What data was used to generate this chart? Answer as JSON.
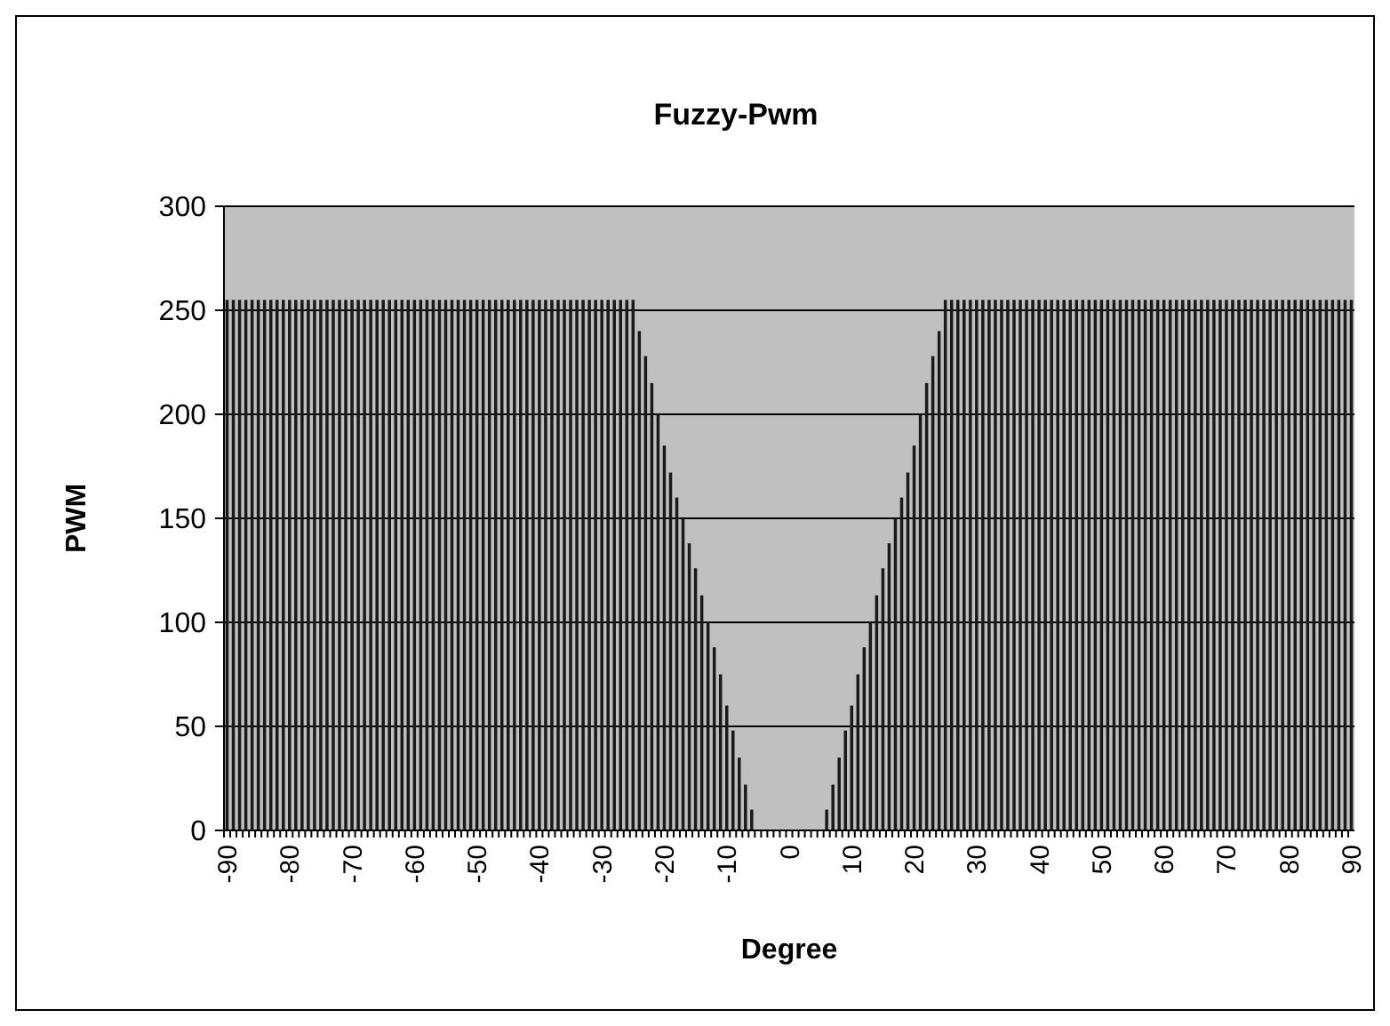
{
  "chart_data": {
    "type": "bar",
    "title": "Fuzzy-Pwm",
    "xlabel": "Degree",
    "ylabel": "PWM",
    "categories": [
      "-90",
      null,
      null,
      null,
      null,
      null,
      null,
      null,
      null,
      null,
      "-80",
      null,
      null,
      null,
      null,
      null,
      null,
      null,
      null,
      null,
      "-70",
      null,
      null,
      null,
      null,
      null,
      null,
      null,
      null,
      null,
      "-60",
      null,
      null,
      null,
      null,
      null,
      null,
      null,
      null,
      null,
      "-50",
      null,
      null,
      null,
      null,
      null,
      null,
      null,
      null,
      null,
      "-40",
      null,
      null,
      null,
      null,
      null,
      null,
      null,
      null,
      null,
      "-30",
      null,
      null,
      null,
      null,
      null,
      null,
      null,
      null,
      null,
      "-20",
      null,
      null,
      null,
      null,
      null,
      null,
      null,
      null,
      null,
      "-10",
      null,
      null,
      null,
      null,
      null,
      null,
      null,
      null,
      null,
      "0",
      null,
      null,
      null,
      null,
      null,
      null,
      null,
      null,
      null,
      "10",
      null,
      null,
      null,
      null,
      null,
      null,
      null,
      null,
      null,
      "20",
      null,
      null,
      null,
      null,
      null,
      null,
      null,
      null,
      null,
      "30",
      null,
      null,
      null,
      null,
      null,
      null,
      null,
      null,
      null,
      "40",
      null,
      null,
      null,
      null,
      null,
      null,
      null,
      null,
      null,
      "50",
      null,
      null,
      null,
      null,
      null,
      null,
      null,
      null,
      null,
      "60",
      null,
      null,
      null,
      null,
      null,
      null,
      null,
      null,
      null,
      "70",
      null,
      null,
      null,
      null,
      null,
      null,
      null,
      null,
      null,
      "80",
      null,
      null,
      null,
      null,
      null,
      null,
      null,
      null,
      null,
      "90"
    ],
    "values": [
      255,
      255,
      255,
      255,
      255,
      255,
      255,
      255,
      255,
      255,
      255,
      255,
      255,
      255,
      255,
      255,
      255,
      255,
      255,
      255,
      255,
      255,
      255,
      255,
      255,
      255,
      255,
      255,
      255,
      255,
      255,
      255,
      255,
      255,
      255,
      255,
      255,
      255,
      255,
      255,
      255,
      255,
      255,
      255,
      255,
      255,
      255,
      255,
      255,
      255,
      255,
      255,
      255,
      255,
      255,
      255,
      255,
      255,
      255,
      255,
      255,
      255,
      255,
      255,
      255,
      255,
      240,
      228,
      215,
      200,
      185,
      172,
      160,
      150,
      138,
      126,
      113,
      100,
      88,
      75,
      60,
      48,
      35,
      22,
      10,
      0,
      0,
      0,
      0,
      0,
      0,
      0,
      0,
      0,
      0,
      0,
      10,
      22,
      35,
      48,
      60,
      75,
      88,
      100,
      113,
      126,
      138,
      150,
      160,
      172,
      185,
      200,
      215,
      228,
      240,
      255,
      255,
      255,
      255,
      255,
      255,
      255,
      255,
      255,
      255,
      255,
      255,
      255,
      255,
      255,
      255,
      255,
      255,
      255,
      255,
      255,
      255,
      255,
      255,
      255,
      255,
      255,
      255,
      255,
      255,
      255,
      255,
      255,
      255,
      255,
      255,
      255,
      255,
      255,
      255,
      255,
      255,
      255,
      255,
      255,
      255,
      255,
      255,
      255,
      255,
      255,
      255,
      255,
      255,
      255,
      255,
      255,
      255,
      255,
      255,
      255,
      255,
      255,
      255,
      255,
      255
    ],
    "color": "#1a1a1a",
    "ylim": [
      0,
      300
    ],
    "yticks": [
      0,
      50,
      100,
      150,
      200,
      250,
      300
    ],
    "grid": "y"
  }
}
